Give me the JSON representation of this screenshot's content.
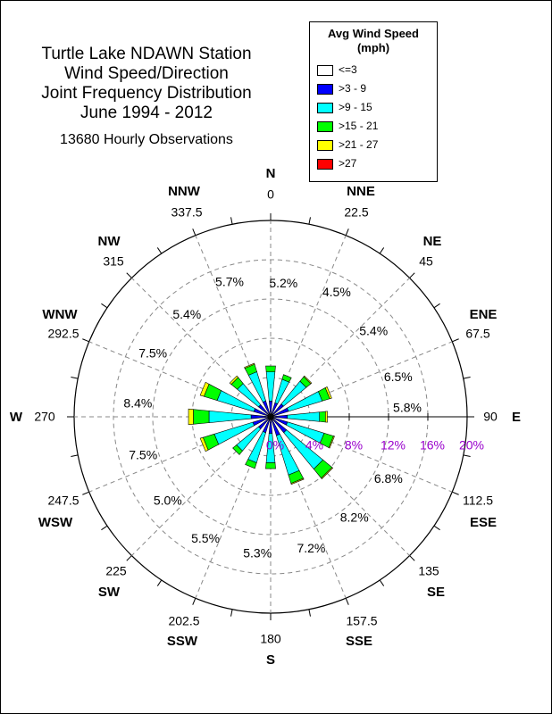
{
  "title_lines": [
    "Turtle Lake NDAWN Station",
    "Wind Speed/Direction",
    "Joint Frequency Distribution",
    "June 1994 - 2012"
  ],
  "observations": "13680 Hourly Observations",
  "legend": {
    "title_lines": [
      "Avg Wind Speed",
      "(mph)"
    ],
    "items": [
      {
        "label": "<=3",
        "color": "#ffffff"
      },
      {
        "label": ">3 - 9",
        "color": "#0000ff"
      },
      {
        "label": ">9 - 15",
        "color": "#00ffff"
      },
      {
        "label": ">15 - 21",
        "color": "#00ff00"
      },
      {
        "label": ">21 - 27",
        "color": "#ffff00"
      },
      {
        "label": ">27",
        "color": "#ff0000"
      }
    ]
  },
  "chart_data": {
    "type": "wind_rose",
    "radial_ticks": [
      "0%",
      "4%",
      "8%",
      "12%",
      "16%",
      "20%"
    ],
    "radial_range": [
      0,
      20
    ],
    "radial_tick_color": "#9900cc",
    "directions": [
      {
        "name": "N",
        "angle": 0,
        "angle_label": "0",
        "percent": "5.2%",
        "segments": [
          0.3,
          1.3,
          3.0,
          0.6,
          0,
          0
        ]
      },
      {
        "name": "NNE",
        "angle": 22.5,
        "angle_label": "22.5",
        "percent": "4.5%",
        "segments": [
          0.3,
          1.2,
          2.5,
          0.5,
          0,
          0
        ]
      },
      {
        "name": "NE",
        "angle": 45,
        "angle_label": "45",
        "percent": "5.4%",
        "segments": [
          0.3,
          1.4,
          3.0,
          0.6,
          0.1,
          0
        ]
      },
      {
        "name": "ENE",
        "angle": 67.5,
        "angle_label": "67.5",
        "percent": "6.5%",
        "segments": [
          0.3,
          1.6,
          3.6,
          0.8,
          0.2,
          0
        ]
      },
      {
        "name": "E",
        "angle": 90,
        "angle_label": "90",
        "percent": "5.8%",
        "segments": [
          0.3,
          1.4,
          3.3,
          0.6,
          0.2,
          0
        ]
      },
      {
        "name": "ESE",
        "angle": 112.5,
        "angle_label": "112.5",
        "percent": "6.8%",
        "segments": [
          0.3,
          1.5,
          3.9,
          1.0,
          0.1,
          0
        ]
      },
      {
        "name": "SE",
        "angle": 135,
        "angle_label": "135",
        "percent": "8.2%",
        "segments": [
          0.3,
          1.8,
          4.8,
          1.2,
          0.1,
          0
        ]
      },
      {
        "name": "SSE",
        "angle": 157.5,
        "angle_label": "157.5",
        "percent": "7.2%",
        "segments": [
          0.3,
          1.7,
          4.2,
          0.9,
          0.1,
          0
        ]
      },
      {
        "name": "S",
        "angle": 180,
        "angle_label": "180",
        "percent": "5.3%",
        "segments": [
          0.3,
          1.4,
          3.0,
          0.6,
          0,
          0
        ]
      },
      {
        "name": "SSW",
        "angle": 202.5,
        "angle_label": "202.5",
        "percent": "5.5%",
        "segments": [
          0.3,
          1.4,
          3.2,
          0.6,
          0,
          0
        ]
      },
      {
        "name": "SW",
        "angle": 225,
        "angle_label": "225",
        "percent": "5.0%",
        "segments": [
          0.3,
          1.3,
          2.9,
          0.5,
          0,
          0
        ]
      },
      {
        "name": "WSW",
        "angle": 247.5,
        "angle_label": "247.5",
        "percent": "7.5%",
        "segments": [
          0.3,
          1.6,
          4.1,
          1.2,
          0.3,
          0
        ]
      },
      {
        "name": "W",
        "angle": 270,
        "angle_label": "270",
        "percent": "8.4%",
        "segments": [
          0.3,
          1.7,
          4.3,
          1.6,
          0.5,
          0
        ]
      },
      {
        "name": "WNW",
        "angle": 292.5,
        "angle_label": "292.5",
        "percent": "7.5%",
        "segments": [
          0.3,
          1.5,
          3.9,
          1.4,
          0.4,
          0
        ]
      },
      {
        "name": "NW",
        "angle": 315,
        "angle_label": "315",
        "percent": "5.4%",
        "segments": [
          0.3,
          1.3,
          2.8,
          0.8,
          0.2,
          0
        ]
      },
      {
        "name": "NNW",
        "angle": 337.5,
        "angle_label": "337.5",
        "percent": "5.7%",
        "segments": [
          0.3,
          1.4,
          3.1,
          0.8,
          0.1,
          0
        ]
      }
    ]
  }
}
